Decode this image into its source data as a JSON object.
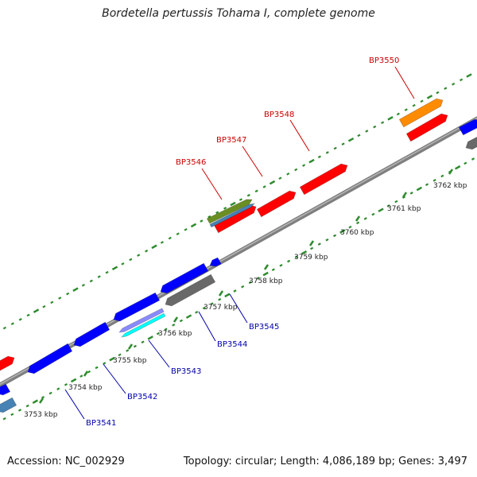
{
  "title": "Bordetella pertussis Tohama I, complete genome",
  "footer": {
    "accession": "Accession: NC_002929",
    "summary": "Topology: circular; Length: 4,086,189 bp; Genes: 3,497"
  },
  "colors": {
    "backbone": "#8a8a8a",
    "tick": "#2e8b2e",
    "forward_label": "#cc0000",
    "reverse_label": "#0000aa"
  },
  "kbp_ticks": [
    {
      "kbp": 3753,
      "label": "3753 kbp"
    },
    {
      "kbp": 3754,
      "label": "3754 kbp"
    },
    {
      "kbp": 3755,
      "label": "3755 kbp"
    },
    {
      "kbp": 3756,
      "label": "3756 kbp"
    },
    {
      "kbp": 3757,
      "label": "3757 kbp"
    },
    {
      "kbp": 3758,
      "label": "3758 kbp"
    },
    {
      "kbp": 3759,
      "label": "3759 kbp"
    },
    {
      "kbp": 3760,
      "label": "3760 kbp"
    },
    {
      "kbp": 3761,
      "label": "3761 kbp"
    },
    {
      "kbp": 3762,
      "label": "3762 kbp"
    }
  ],
  "gene_labels": [
    {
      "id": "BP3541",
      "strand": "reverse"
    },
    {
      "id": "BP3542",
      "strand": "reverse"
    },
    {
      "id": "BP3543",
      "strand": "reverse"
    },
    {
      "id": "BP3544",
      "strand": "reverse"
    },
    {
      "id": "BP3545",
      "strand": "reverse"
    },
    {
      "id": "BP3546",
      "strand": "forward"
    },
    {
      "id": "BP3547",
      "strand": "forward"
    },
    {
      "id": "BP3548",
      "strand": "forward"
    },
    {
      "id": "BP3550",
      "strand": "forward"
    }
  ],
  "features": [
    {
      "name": "feature-a",
      "color": "#ff0000"
    },
    {
      "name": "feature-b",
      "color": "#ff0000"
    },
    {
      "name": "feature-c",
      "color": "#ff0000"
    },
    {
      "name": "feature-d",
      "color": "#ff0000"
    },
    {
      "name": "feature-e",
      "color": "#ff8c00"
    },
    {
      "name": "feature-f",
      "color": "#ff0000"
    },
    {
      "name": "feature-g",
      "color": "#6b8e23"
    },
    {
      "name": "feature-h",
      "color": "#4682b4"
    },
    {
      "name": "feature-i",
      "color": "#0000ff"
    },
    {
      "name": "feature-j",
      "color": "#0000ff"
    },
    {
      "name": "feature-k",
      "color": "#0000ff"
    },
    {
      "name": "feature-l",
      "color": "#0000ff"
    },
    {
      "name": "feature-m",
      "color": "#0000ff"
    },
    {
      "name": "feature-n",
      "color": "#696969"
    },
    {
      "name": "feature-o",
      "color": "#8a8aff"
    },
    {
      "name": "feature-p",
      "color": "#00ffff"
    },
    {
      "name": "feature-q",
      "color": "#0000ff"
    },
    {
      "name": "feature-r",
      "color": "#4682b4"
    },
    {
      "name": "feature-s",
      "color": "#0000ff"
    },
    {
      "name": "feature-t",
      "color": "#696969"
    },
    {
      "name": "feature-u",
      "color": "#ff0000"
    }
  ]
}
